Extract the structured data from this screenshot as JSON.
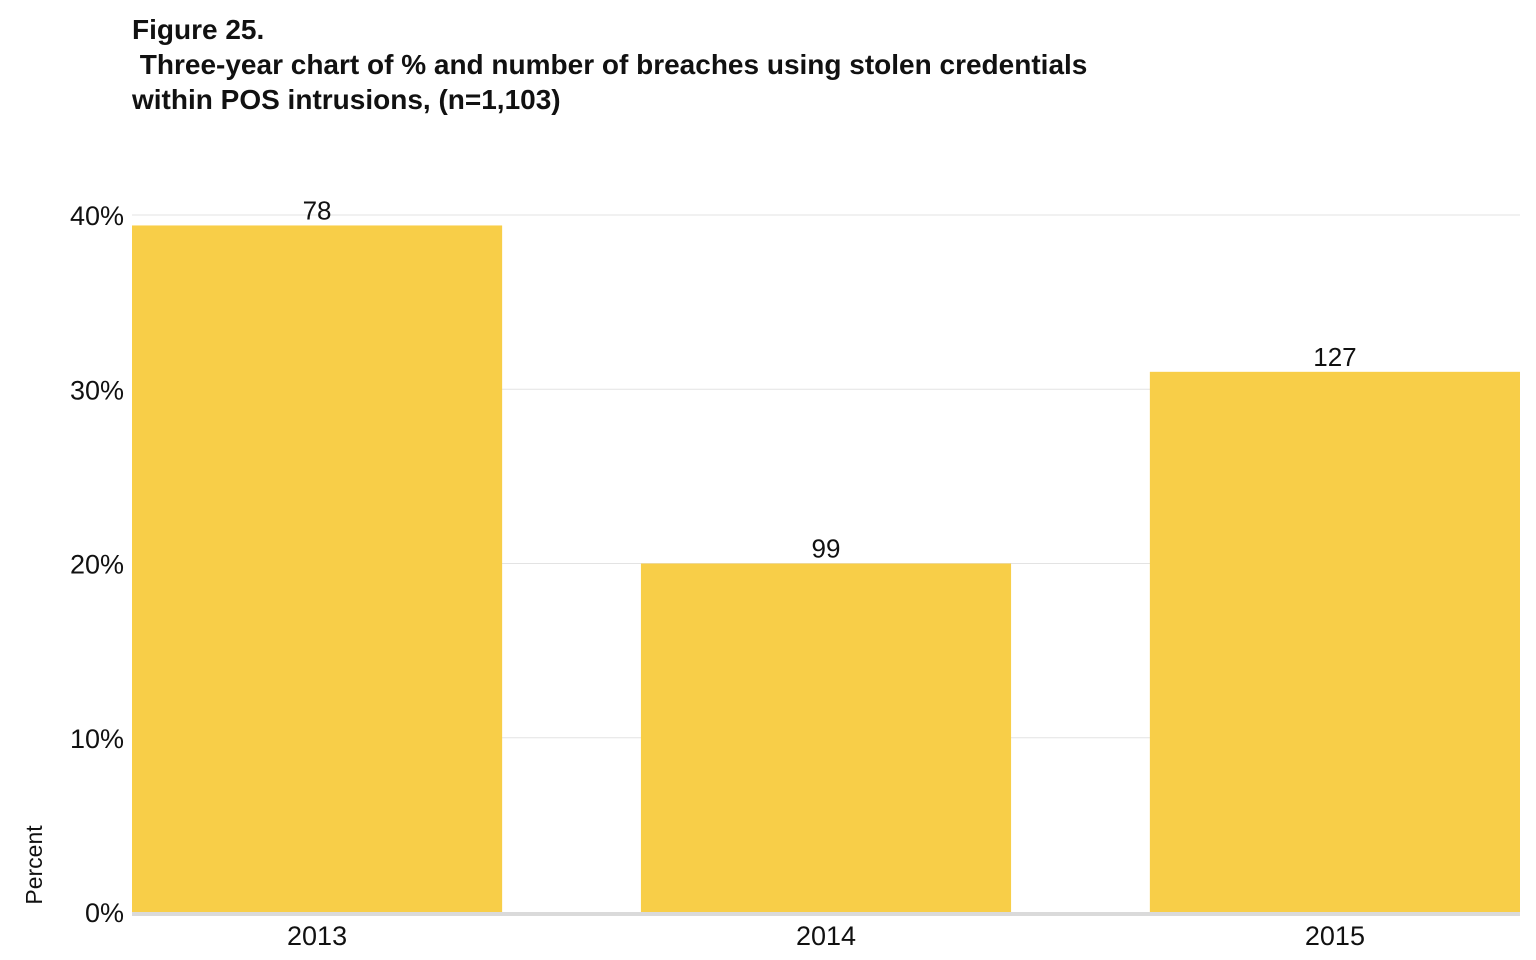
{
  "chart_data": {
    "type": "bar",
    "title": "Figure 25.",
    "subtitle": [
      " Three-year chart of % and number of breaches using stolen credentials",
      "within POS intrusions, (n=1,103)"
    ],
    "xlabel": "",
    "ylabel": "Percent",
    "categories": [
      "2013",
      "2014",
      "2015"
    ],
    "values": [
      39.4,
      20.0,
      31.0
    ],
    "data_labels": [
      "78",
      "99",
      "127"
    ],
    "ylim": [
      0,
      40
    ],
    "yticks": [
      0,
      10,
      20,
      30,
      40
    ],
    "ytick_labels": [
      "0%",
      "10%",
      "20%",
      "30%",
      "40%"
    ],
    "grid": true,
    "bar_color": "#F8CE48",
    "grid_color": "#E3E3E3",
    "baseline_color": "#DADADA"
  }
}
